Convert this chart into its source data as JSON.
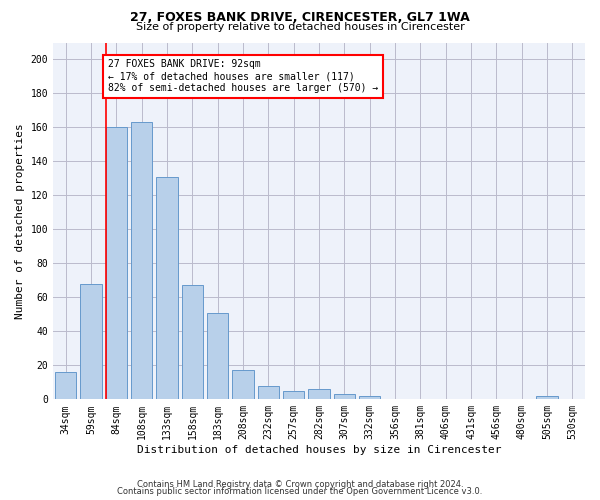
{
  "title": "27, FOXES BANK DRIVE, CIRENCESTER, GL7 1WA",
  "subtitle": "Size of property relative to detached houses in Cirencester",
  "xlabel": "Distribution of detached houses by size in Cirencester",
  "ylabel": "Number of detached properties",
  "bar_labels": [
    "34sqm",
    "59sqm",
    "84sqm",
    "108sqm",
    "133sqm",
    "158sqm",
    "183sqm",
    "208sqm",
    "232sqm",
    "257sqm",
    "282sqm",
    "307sqm",
    "332sqm",
    "356sqm",
    "381sqm",
    "406sqm",
    "431sqm",
    "456sqm",
    "480sqm",
    "505sqm",
    "530sqm"
  ],
  "bar_values": [
    16,
    68,
    160,
    163,
    131,
    67,
    51,
    17,
    8,
    5,
    6,
    3,
    2,
    0,
    0,
    0,
    0,
    0,
    0,
    2,
    0
  ],
  "bar_color": "#b8d0ea",
  "bar_edge_color": "#6699cc",
  "vline_color": "red",
  "vline_x_index": 2,
  "annotation_text": "27 FOXES BANK DRIVE: 92sqm\n← 17% of detached houses are smaller (117)\n82% of semi-detached houses are larger (570) →",
  "annotation_box_color": "white",
  "annotation_box_edge": "red",
  "ylim": [
    0,
    210
  ],
  "yticks": [
    0,
    20,
    40,
    60,
    80,
    100,
    120,
    140,
    160,
    180,
    200
  ],
  "grid_color": "#bbbbcc",
  "background_color": "#eef2fa",
  "title_fontsize": 9,
  "subtitle_fontsize": 8,
  "axis_label_fontsize": 8,
  "tick_fontsize": 7,
  "annotation_fontsize": 7,
  "footer_line1": "Contains HM Land Registry data © Crown copyright and database right 2024.",
  "footer_line2": "Contains public sector information licensed under the Open Government Licence v3.0."
}
